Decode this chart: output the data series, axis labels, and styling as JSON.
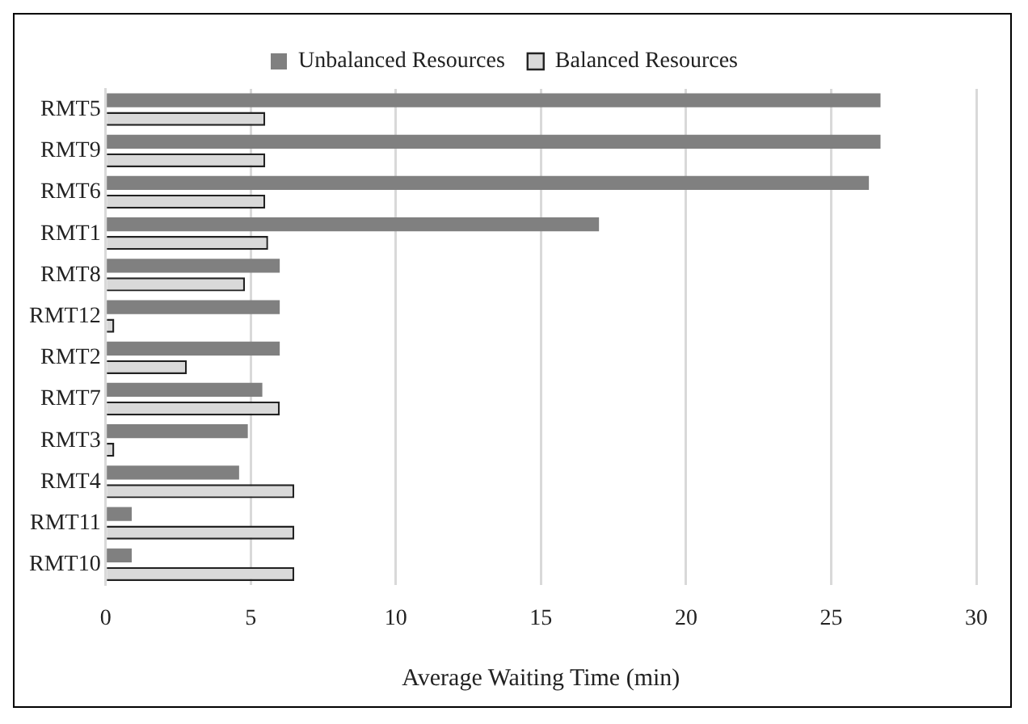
{
  "chart_data": {
    "type": "bar",
    "orientation": "horizontal",
    "xlabel": "Average Waiting Time (min)",
    "categories": [
      "RMT5",
      "RMT9",
      "RMT6",
      "RMT1",
      "RMT8",
      "RMT12",
      "RMT2",
      "RMT7",
      "RMT3",
      "RMT4",
      "RMT11",
      "RMT10"
    ],
    "series": [
      {
        "name": "Unbalanced Resources",
        "color": "#808080",
        "values": [
          26.7,
          26.7,
          26.3,
          17.0,
          6.0,
          6.0,
          6.0,
          5.4,
          4.9,
          4.6,
          0.9,
          0.9
        ]
      },
      {
        "name": "Balanced Resources",
        "color": "#d9d9d9",
        "values": [
          5.5,
          5.5,
          5.5,
          5.6,
          4.8,
          0.3,
          2.8,
          6.0,
          0.3,
          6.5,
          6.5,
          6.5
        ]
      }
    ],
    "xlim": [
      0,
      30
    ],
    "xticks": [
      0,
      5,
      10,
      15,
      20,
      25,
      30
    ],
    "grid": "x",
    "legend": "top"
  }
}
